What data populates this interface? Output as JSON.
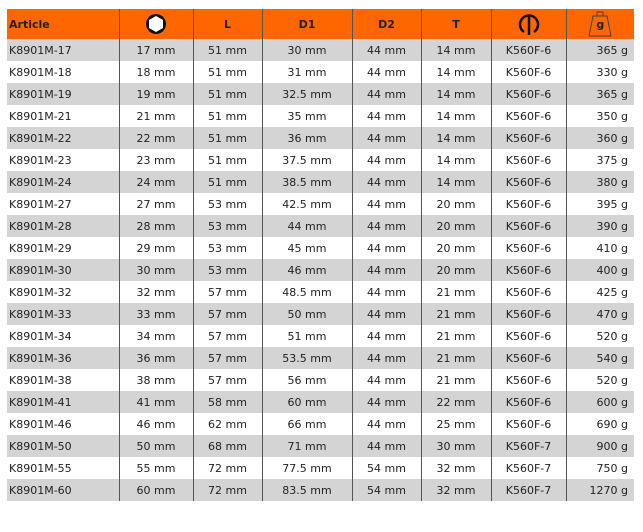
{
  "header": {
    "article": "Article",
    "L": "L",
    "D1": "D1",
    "D2": "D2",
    "T": "T",
    "weight": "g",
    "icons": [
      "hexagon-icon",
      "square-drive-icon",
      "weight-icon"
    ]
  },
  "colors": {
    "header": "#ff6600",
    "stripe": "#d4d4d4"
  },
  "rows": [
    [
      "K8901M-17",
      "17 mm",
      "51 mm",
      "30 mm",
      "44 mm",
      "14 mm",
      "K560F-6",
      "365 g"
    ],
    [
      "K8901M-18",
      "18 mm",
      "51 mm",
      "31 mm",
      "44 mm",
      "14 mm",
      "K560F-6",
      "330 g"
    ],
    [
      "K8901M-19",
      "19 mm",
      "51 mm",
      "32.5 mm",
      "44 mm",
      "14 mm",
      "K560F-6",
      "365 g"
    ],
    [
      "K8901M-21",
      "21 mm",
      "51 mm",
      "35 mm",
      "44 mm",
      "14 mm",
      "K560F-6",
      "350 g"
    ],
    [
      "K8901M-22",
      "22 mm",
      "51 mm",
      "36 mm",
      "44 mm",
      "14 mm",
      "K560F-6",
      "360 g"
    ],
    [
      "K8901M-23",
      "23 mm",
      "51 mm",
      "37.5 mm",
      "44 mm",
      "14 mm",
      "K560F-6",
      "375 g"
    ],
    [
      "K8901M-24",
      "24 mm",
      "51 mm",
      "38.5 mm",
      "44 mm",
      "14 mm",
      "K560F-6",
      "380 g"
    ],
    [
      "K8901M-27",
      "27 mm",
      "53 mm",
      "42.5 mm",
      "44 mm",
      "20 mm",
      "K560F-6",
      "395 g"
    ],
    [
      "K8901M-28",
      "28 mm",
      "53 mm",
      "44 mm",
      "44 mm",
      "20 mm",
      "K560F-6",
      "390 g"
    ],
    [
      "K8901M-29",
      "29 mm",
      "53 mm",
      "45 mm",
      "44 mm",
      "20 mm",
      "K560F-6",
      "410 g"
    ],
    [
      "K8901M-30",
      "30 mm",
      "53 mm",
      "46 mm",
      "44 mm",
      "20 mm",
      "K560F-6",
      "400 g"
    ],
    [
      "K8901M-32",
      "32 mm",
      "57 mm",
      "48.5 mm",
      "44 mm",
      "21 mm",
      "K560F-6",
      "425 g"
    ],
    [
      "K8901M-33",
      "33 mm",
      "57 mm",
      "50 mm",
      "44 mm",
      "21 mm",
      "K560F-6",
      "470 g"
    ],
    [
      "K8901M-34",
      "34 mm",
      "57 mm",
      "51 mm",
      "44 mm",
      "21 mm",
      "K560F-6",
      "520 g"
    ],
    [
      "K8901M-36",
      "36 mm",
      "57 mm",
      "53.5 mm",
      "44 mm",
      "21 mm",
      "K560F-6",
      "540 g"
    ],
    [
      "K8901M-38",
      "38 mm",
      "57 mm",
      "56 mm",
      "44 mm",
      "21 mm",
      "K560F-6",
      "520 g"
    ],
    [
      "K8901M-41",
      "41 mm",
      "58 mm",
      "60 mm",
      "44 mm",
      "22 mm",
      "K560F-6",
      "600 g"
    ],
    [
      "K8901M-46",
      "46 mm",
      "62 mm",
      "66 mm",
      "44 mm",
      "25 mm",
      "K560F-6",
      "690 g"
    ],
    [
      "K8901M-50",
      "50 mm",
      "68 mm",
      "71 mm",
      "44 mm",
      "30 mm",
      "K560F-7",
      "900 g"
    ],
    [
      "K8901M-55",
      "55 mm",
      "72 mm",
      "77.5 mm",
      "54 mm",
      "32 mm",
      "K560F-7",
      "750 g"
    ],
    [
      "K8901M-60",
      "60 mm",
      "72 mm",
      "83.5 mm",
      "54 mm",
      "32 mm",
      "K560F-7",
      "1270 g"
    ]
  ]
}
